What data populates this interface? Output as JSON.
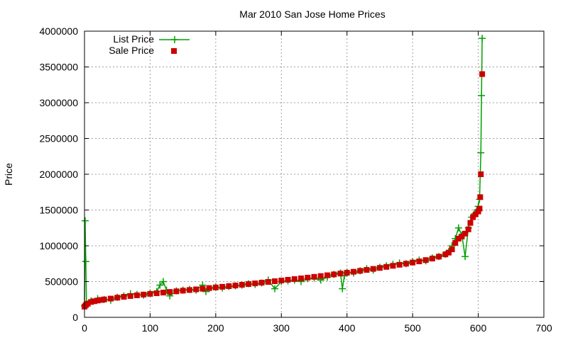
{
  "chart_data": {
    "type": "scatter",
    "title": "Mar 2010 San Jose Home Prices",
    "xlabel": "",
    "ylabel": "Price",
    "xlim": [
      0,
      700
    ],
    "ylim": [
      0,
      4000000
    ],
    "x_ticks": [
      "0",
      "100",
      "200",
      "300",
      "400",
      "500",
      "600",
      "700"
    ],
    "y_ticks": [
      "0",
      "500000",
      "1000000",
      "1500000",
      "2000000",
      "2500000",
      "3000000",
      "3500000",
      "4000000"
    ],
    "grid": true,
    "legend_position": "top-left",
    "series": [
      {
        "name": "List Price",
        "style": "linespoints",
        "color": "#00a000",
        "marker": "plus",
        "points": [
          [
            0,
            160000
          ],
          [
            1,
            1350000
          ],
          [
            2,
            780000
          ],
          [
            3,
            200000
          ],
          [
            10,
            230000
          ],
          [
            20,
            260000
          ],
          [
            30,
            250000
          ],
          [
            40,
            240000
          ],
          [
            50,
            280000
          ],
          [
            60,
            300000
          ],
          [
            70,
            330000
          ],
          [
            80,
            320000
          ],
          [
            90,
            310000
          ],
          [
            100,
            340000
          ],
          [
            110,
            360000
          ],
          [
            115,
            450000
          ],
          [
            120,
            500000
          ],
          [
            125,
            380000
          ],
          [
            130,
            300000
          ],
          [
            140,
            370000
          ],
          [
            150,
            380000
          ],
          [
            160,
            390000
          ],
          [
            170,
            380000
          ],
          [
            180,
            450000
          ],
          [
            185,
            360000
          ],
          [
            190,
            400000
          ],
          [
            200,
            420000
          ],
          [
            210,
            410000
          ],
          [
            220,
            430000
          ],
          [
            230,
            440000
          ],
          [
            240,
            450000
          ],
          [
            250,
            470000
          ],
          [
            260,
            460000
          ],
          [
            270,
            480000
          ],
          [
            280,
            520000
          ],
          [
            290,
            400000
          ],
          [
            300,
            500000
          ],
          [
            310,
            510000
          ],
          [
            320,
            520000
          ],
          [
            330,
            500000
          ],
          [
            340,
            540000
          ],
          [
            350,
            550000
          ],
          [
            360,
            520000
          ],
          [
            370,
            560000
          ],
          [
            380,
            600000
          ],
          [
            390,
            620000
          ],
          [
            393,
            400000
          ],
          [
            396,
            580000
          ],
          [
            400,
            630000
          ],
          [
            410,
            620000
          ],
          [
            420,
            650000
          ],
          [
            430,
            680000
          ],
          [
            440,
            660000
          ],
          [
            450,
            700000
          ],
          [
            460,
            720000
          ],
          [
            470,
            740000
          ],
          [
            480,
            760000
          ],
          [
            490,
            750000
          ],
          [
            500,
            780000
          ],
          [
            510,
            800000
          ],
          [
            520,
            790000
          ],
          [
            530,
            830000
          ],
          [
            540,
            850000
          ],
          [
            550,
            880000
          ],
          [
            555,
            920000
          ],
          [
            560,
            1000000
          ],
          [
            565,
            1100000
          ],
          [
            570,
            1250000
          ],
          [
            575,
            1150000
          ],
          [
            580,
            850000
          ],
          [
            585,
            1250000
          ],
          [
            590,
            1400000
          ],
          [
            595,
            1450000
          ],
          [
            598,
            1500000
          ],
          [
            600,
            1550000
          ],
          [
            602,
            1650000
          ],
          [
            604,
            2300000
          ],
          [
            605,
            3100000
          ],
          [
            606,
            3900000
          ]
        ]
      },
      {
        "name": "Sale Price",
        "style": "points",
        "color": "#cc0000",
        "marker": "square",
        "points": [
          [
            0,
            150000
          ],
          [
            2,
            170000
          ],
          [
            5,
            190000
          ],
          [
            10,
            215000
          ],
          [
            15,
            225000
          ],
          [
            20,
            235000
          ],
          [
            25,
            243000
          ],
          [
            30,
            250000
          ],
          [
            40,
            262000
          ],
          [
            50,
            275000
          ],
          [
            60,
            287000
          ],
          [
            70,
            298000
          ],
          [
            80,
            308000
          ],
          [
            90,
            318000
          ],
          [
            100,
            328000
          ],
          [
            110,
            337000
          ],
          [
            120,
            346000
          ],
          [
            130,
            355000
          ],
          [
            140,
            364000
          ],
          [
            150,
            373000
          ],
          [
            160,
            382000
          ],
          [
            170,
            391000
          ],
          [
            180,
            400000
          ],
          [
            190,
            409000
          ],
          [
            200,
            418000
          ],
          [
            210,
            427000
          ],
          [
            220,
            436000
          ],
          [
            230,
            445000
          ],
          [
            240,
            455000
          ],
          [
            250,
            465000
          ],
          [
            260,
            475000
          ],
          [
            270,
            485000
          ],
          [
            280,
            495000
          ],
          [
            290,
            505000
          ],
          [
            300,
            515000
          ],
          [
            310,
            525000
          ],
          [
            320,
            535000
          ],
          [
            330,
            545000
          ],
          [
            340,
            555000
          ],
          [
            350,
            566000
          ],
          [
            360,
            577000
          ],
          [
            370,
            588000
          ],
          [
            380,
            600000
          ],
          [
            390,
            612000
          ],
          [
            400,
            624000
          ],
          [
            410,
            637000
          ],
          [
            420,
            650000
          ],
          [
            430,
            663000
          ],
          [
            440,
            677000
          ],
          [
            450,
            691000
          ],
          [
            460,
            705000
          ],
          [
            470,
            720000
          ],
          [
            480,
            735000
          ],
          [
            490,
            750000
          ],
          [
            500,
            766000
          ],
          [
            510,
            782000
          ],
          [
            520,
            800000
          ],
          [
            530,
            822000
          ],
          [
            540,
            848000
          ],
          [
            550,
            880000
          ],
          [
            555,
            905000
          ],
          [
            560,
            950000
          ],
          [
            565,
            1040000
          ],
          [
            570,
            1100000
          ],
          [
            575,
            1130000
          ],
          [
            580,
            1170000
          ],
          [
            585,
            1230000
          ],
          [
            588,
            1320000
          ],
          [
            592,
            1400000
          ],
          [
            596,
            1440000
          ],
          [
            600,
            1480000
          ],
          [
            602,
            1520000
          ],
          [
            603,
            1680000
          ],
          [
            604,
            2000000
          ],
          [
            606,
            3400000
          ]
        ]
      }
    ]
  }
}
